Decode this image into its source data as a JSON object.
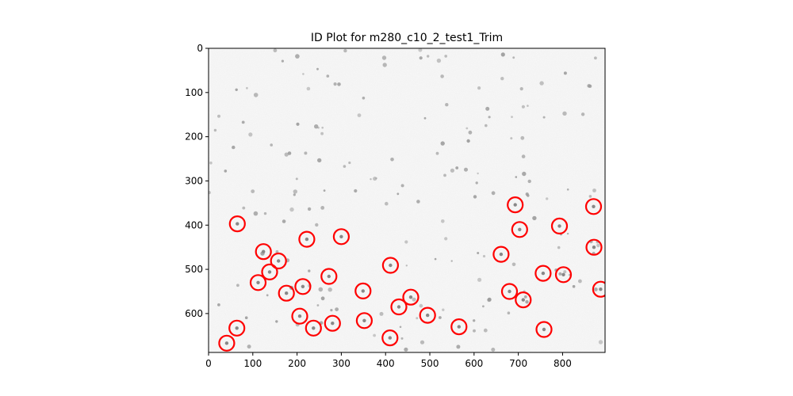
{
  "chart_data": {
    "type": "scatter",
    "title": "ID Plot for m280_c10_2_test1_Trim",
    "xlabel": "",
    "ylabel": "",
    "xlim": [
      0,
      896
    ],
    "ylim": [
      688,
      0
    ],
    "y_axis_inverted": true,
    "x_ticks": [
      0,
      100,
      200,
      300,
      400,
      500,
      600,
      700,
      800
    ],
    "y_ticks": [
      0,
      100,
      200,
      300,
      400,
      500,
      600
    ],
    "background": "grayscale microscopy image with scattered particles",
    "grid": false,
    "legend": "none",
    "marker": {
      "shape": "circle-outline",
      "color": "#ff0000"
    },
    "series": [
      {
        "x": [
          65,
          124,
          158,
          138,
          112,
          176,
          213,
          222,
          272,
          300,
          206,
          237,
          280,
          349,
          352,
          411,
          410,
          430,
          457,
          495,
          566,
          661,
          693,
          703,
          680,
          711,
          756,
          758,
          793,
          802,
          870,
          871,
          886,
          64,
          41
        ],
        "y": [
          397,
          460,
          481,
          506,
          530,
          554,
          539,
          432,
          516,
          426,
          606,
          633,
          622,
          549,
          616,
          491,
          655,
          585,
          563,
          604,
          630,
          466,
          354,
          410,
          550,
          569,
          509,
          636,
          402,
          512,
          358,
          450,
          545,
          633,
          667
        ]
      }
    ]
  }
}
